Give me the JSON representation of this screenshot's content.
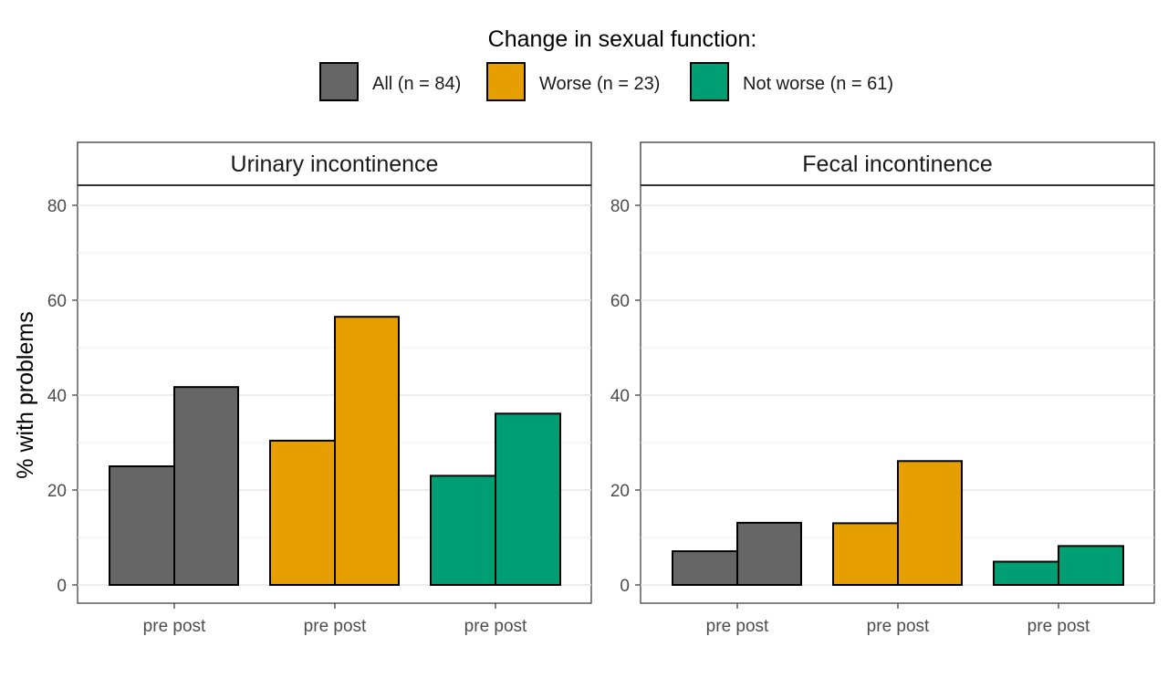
{
  "chart_data": {
    "type": "bar",
    "legend": {
      "title": "Change in sexual function:",
      "position": "top",
      "entries": [
        {
          "label": "All (n = 84)",
          "color": "#666666"
        },
        {
          "label": "Worse (n = 23)",
          "color": "#E69F00"
        },
        {
          "label": "Not worse (n = 61)",
          "color": "#009E73"
        }
      ]
    },
    "ylabel": "% with problems",
    "ylim": [
      0,
      84
    ],
    "yticks": [
      0,
      20,
      40,
      60,
      80
    ],
    "grid": true,
    "group_tick_label": "pre post",
    "panels": [
      {
        "title": "Urinary incontinence",
        "series": [
          {
            "name": "All (n = 84)",
            "pre": 25,
            "post": 41.7
          },
          {
            "name": "Worse (n = 23)",
            "pre": 30.4,
            "post": 56.5
          },
          {
            "name": "Not worse (n = 61)",
            "pre": 23,
            "post": 36.1
          }
        ]
      },
      {
        "title": "Fecal incontinence",
        "series": [
          {
            "name": "All (n = 84)",
            "pre": 7.1,
            "post": 13.1
          },
          {
            "name": "Worse (n = 23)",
            "pre": 13,
            "post": 26.1
          },
          {
            "name": "Not worse (n = 61)",
            "pre": 4.9,
            "post": 8.2
          }
        ]
      }
    ]
  }
}
